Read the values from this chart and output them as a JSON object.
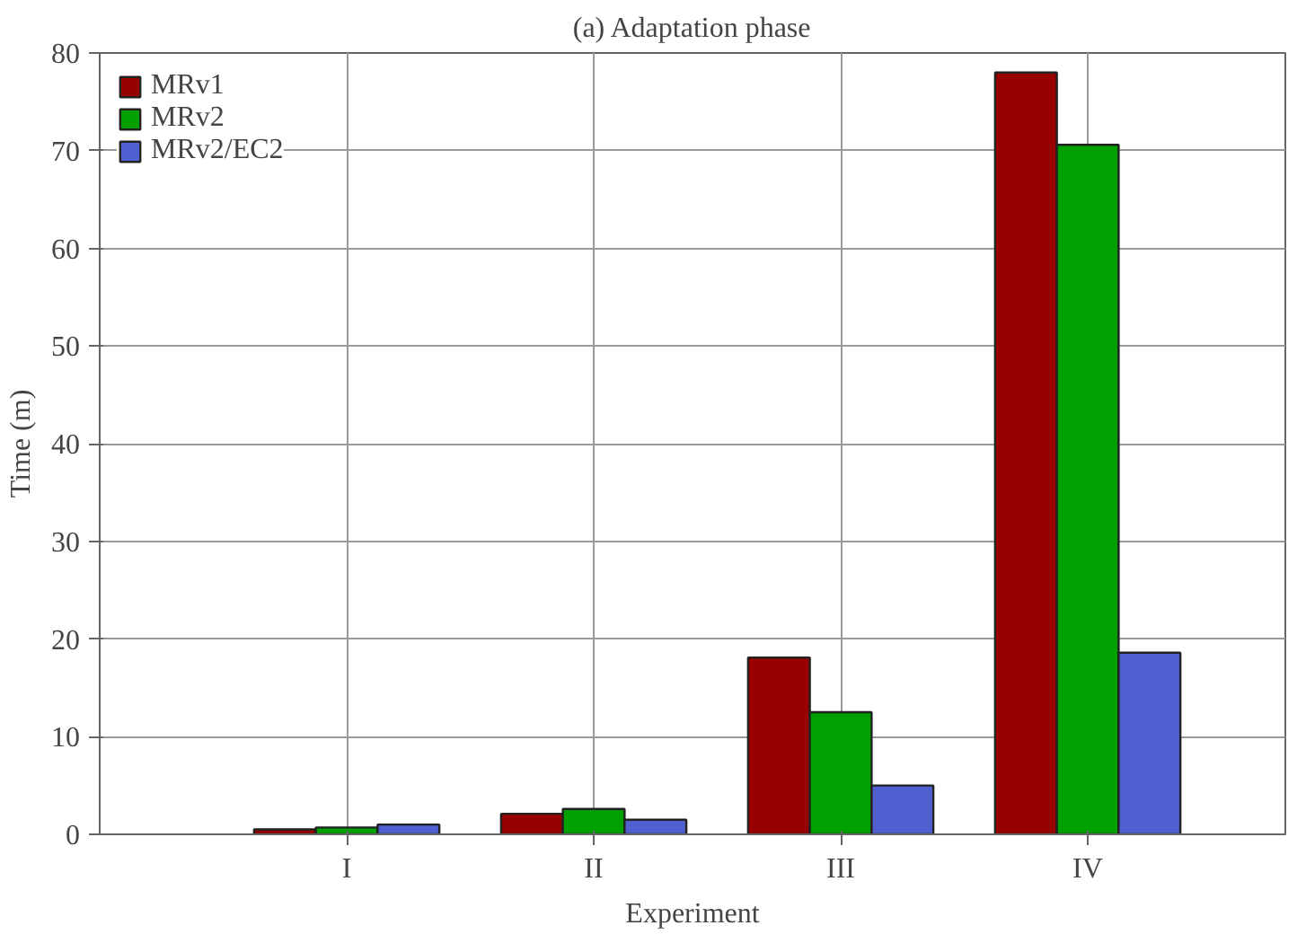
{
  "chart_data": {
    "type": "bar",
    "title": "(a) Adaptation phase",
    "xlabel": "Experiment",
    "ylabel": "Time (m)",
    "categories": [
      "I",
      "II",
      "III",
      "IV"
    ],
    "series": [
      {
        "name": "MRv1",
        "color": "#990000",
        "values": [
          0.5,
          2.1,
          18.1,
          78.0
        ]
      },
      {
        "name": "MRv2",
        "color": "#00a000",
        "values": [
          0.7,
          2.6,
          12.5,
          70.6
        ]
      },
      {
        "name": "MRv2/EC2",
        "color": "#5060d0",
        "values": [
          1.0,
          1.5,
          5.0,
          18.6
        ]
      }
    ],
    "ylim": [
      0,
      80
    ],
    "yticks": [
      0,
      10,
      20,
      30,
      40,
      50,
      60,
      70,
      80
    ],
    "grid": true,
    "legend": "top left"
  }
}
